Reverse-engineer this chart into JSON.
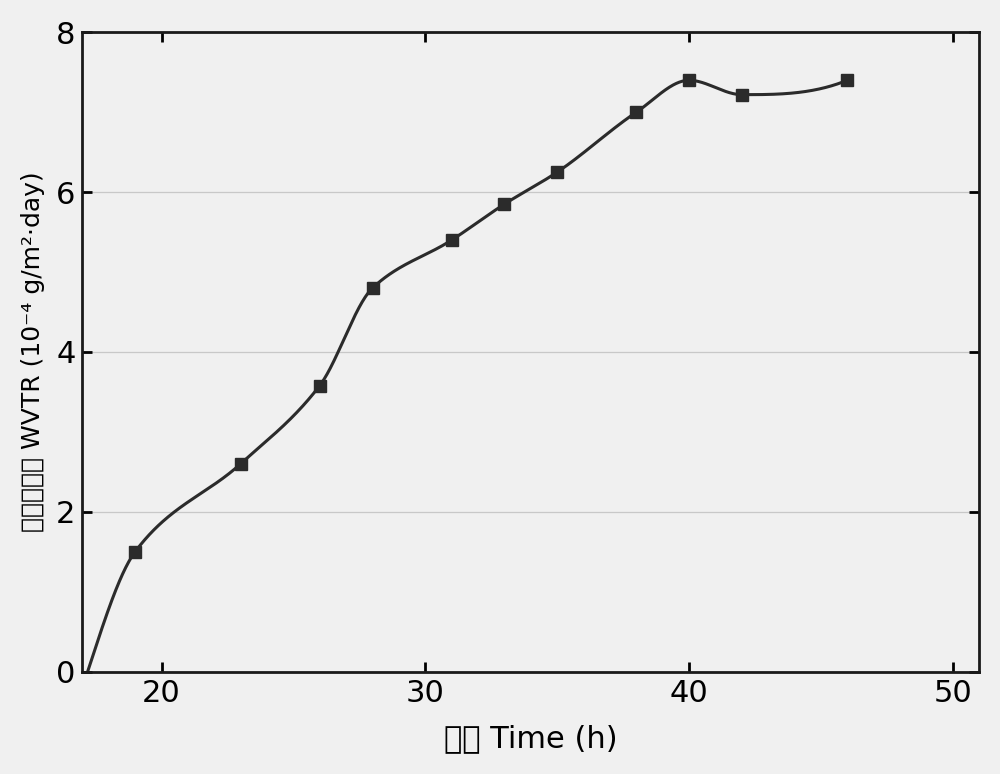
{
  "x_data": [
    17.2,
    19.0,
    23.0,
    26.0,
    28.0,
    31.0,
    33.0,
    35.0,
    38.0,
    40.0,
    42.0,
    46.0
  ],
  "y_data": [
    0.0,
    1.5,
    2.6,
    3.58,
    4.8,
    5.4,
    5.85,
    6.25,
    7.0,
    7.4,
    7.22,
    7.4
  ],
  "x_markers": [
    19.0,
    23.0,
    26.0,
    28.0,
    31.0,
    33.0,
    35.0,
    38.0,
    40.0,
    42.0,
    46.0
  ],
  "y_markers": [
    1.5,
    2.6,
    3.58,
    4.8,
    5.4,
    5.85,
    6.25,
    7.0,
    7.4,
    7.22,
    7.4
  ],
  "xlabel_cn": "时间",
  "xlabel_en": " Time (h)",
  "ylabel_cn": "水汽渗透率",
  "ylabel_en": " WVTR (10",
  "ylabel_sup": "-4",
  "ylabel_end": " g/m²·day)",
  "xlim": [
    17,
    51
  ],
  "ylim": [
    0,
    8
  ],
  "xticks": [
    20,
    30,
    40,
    50
  ],
  "yticks": [
    0,
    2,
    4,
    6,
    8
  ],
  "line_color": "#2b2b2b",
  "marker_color": "#2b2b2b",
  "bg_color": "#f0f0f0",
  "plot_bg_color": "#f0f0f0",
  "grid_color": "#c8c8c8",
  "linewidth": 2.2,
  "markersize": 9
}
